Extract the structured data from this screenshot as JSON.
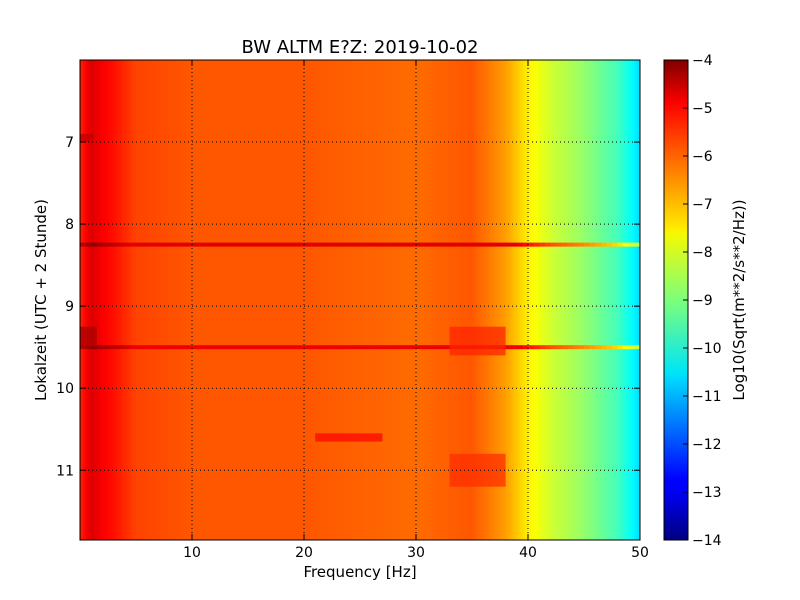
{
  "chart_data": {
    "type": "heatmap",
    "title": "BW ALTM E?Z: 2019-10-02",
    "xlabel": "Frequency [Hz]",
    "ylabel": "Lokalzeit (UTC + 2 Stunde)",
    "xlim": [
      0,
      50
    ],
    "ylim": [
      11.85,
      6.0
    ],
    "x_ticks": [
      10,
      20,
      30,
      40,
      50
    ],
    "y_ticks": [
      7,
      8,
      9,
      10,
      11
    ],
    "grid": true,
    "grid_style": "dotted",
    "colormap": "jet",
    "colorbar": {
      "label": "Log10(Sqrt(m**2/s**2/Hz))",
      "range": [
        -14,
        -4
      ],
      "ticks": [
        -4,
        -5,
        -6,
        -7,
        -8,
        -9,
        -10,
        -11,
        -12,
        -13,
        -14
      ]
    },
    "spectral_profile": {
      "frequencies_hz": [
        0,
        1,
        2,
        3,
        5,
        10,
        20,
        30,
        35,
        38,
        40,
        42,
        45,
        48,
        50
      ],
      "log10_amplitude": [
        -5.6,
        -4.9,
        -5.2,
        -5.4,
        -5.9,
        -6.1,
        -6.1,
        -6.3,
        -6.1,
        -6.8,
        -7.6,
        -8.2,
        -8.8,
        -9.6,
        -10.6
      ]
    },
    "horizontal_features": [
      {
        "time": 8.25,
        "fmin": 0,
        "fmax": 50,
        "log10_amplitude": -5.0
      },
      {
        "time": 9.5,
        "fmin": 0,
        "fmax": 50,
        "log10_amplitude": -5.1
      }
    ],
    "local_features": [
      {
        "time_range": [
          9.25,
          9.5
        ],
        "freq_range": [
          0,
          1.5
        ],
        "log10_amplitude": -4.4
      },
      {
        "time_range": [
          6.9,
          7.0
        ],
        "freq_range": [
          0,
          1.2
        ],
        "log10_amplitude": -4.6
      },
      {
        "time_range": [
          10.55,
          10.65
        ],
        "freq_range": [
          21,
          27
        ],
        "log10_amplitude": -5.3
      },
      {
        "time_range": [
          9.25,
          9.6
        ],
        "freq_range": [
          33,
          38
        ],
        "log10_amplitude": -5.6
      },
      {
        "time_range": [
          10.8,
          11.2
        ],
        "freq_range": [
          33,
          38
        ],
        "log10_amplitude": -5.7
      }
    ]
  }
}
